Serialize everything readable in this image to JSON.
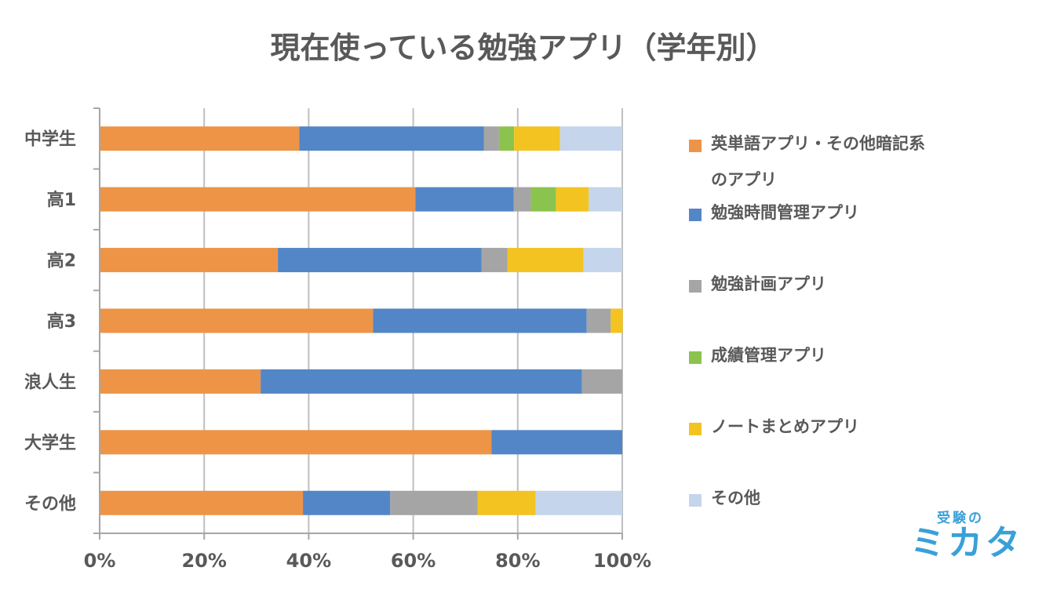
{
  "chart_data": {
    "type": "bar",
    "orientation": "horizontal",
    "stacked": true,
    "percent_stacked": true,
    "title": "現在使っている勉強アプリ（学年別）",
    "categories": [
      "中学生",
      "高1",
      "高2",
      "高3",
      "浪人生",
      "大学生",
      "その他"
    ],
    "series": [
      {
        "name": "英単語アプリ・その他暗記系のアプリ",
        "color": "#ed9447",
        "values": [
          38.2,
          60.4,
          34.1,
          52.3,
          30.8,
          75.0,
          38.9
        ]
      },
      {
        "name": "勉強時間管理アプリ",
        "color": "#5386c6",
        "values": [
          35.3,
          18.8,
          39.0,
          40.9,
          61.5,
          25.0,
          16.7
        ]
      },
      {
        "name": "勉強計画アプリ",
        "color": "#a5a5a5",
        "values": [
          2.9,
          3.3,
          4.9,
          4.6,
          7.7,
          0,
          16.7
        ]
      },
      {
        "name": "成績管理アプリ",
        "color": "#8bc34f",
        "values": [
          2.9,
          4.8,
          0,
          0,
          0,
          0,
          0
        ]
      },
      {
        "name": "ノートまとめアプリ",
        "color": "#f3c322",
        "values": [
          8.8,
          6.3,
          14.6,
          2.3,
          0,
          0,
          11.1
        ]
      },
      {
        "name": "その他",
        "color": "#c4d5ec",
        "values": [
          11.9,
          6.4,
          7.4,
          0,
          0,
          0,
          16.6
        ]
      }
    ],
    "x_ticks": [
      "0%",
      "20%",
      "40%",
      "60%",
      "80%",
      "100%"
    ],
    "xlim": [
      0,
      100
    ],
    "grid": true,
    "legend_position": "right"
  },
  "legend": {
    "line1": "英単語アプリ・その他暗記系",
    "line2": "のアプリ",
    "items": [
      "勉強時間管理アプリ",
      "勉強計画アプリ",
      "成績管理アプリ",
      "ノートまとめアプリ",
      "その他"
    ]
  },
  "brand": {
    "small": "受験の",
    "large": "ミカタ",
    "color": "#3aa0d8"
  }
}
